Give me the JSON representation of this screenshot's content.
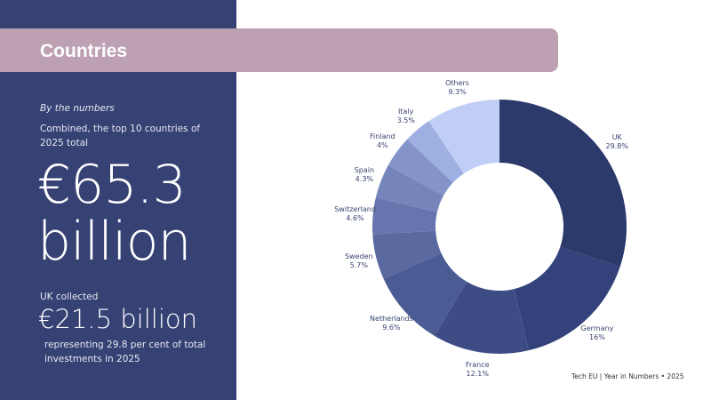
{
  "header": {
    "title": "Countries"
  },
  "summary": {
    "kicker": "By the numbers",
    "intro": "Combined, the top 10 countries of 2025 total",
    "total_line1": "€65.3",
    "total_line2": "billion",
    "uk_label": "UK collected",
    "uk_value": "€21.5 billion",
    "uk_note": "representing 29.8 per cent of total investments in 2025"
  },
  "footer": {
    "source": "Tech EU | Year in Numbers • 2025"
  },
  "colors": {
    "panel": "#364174",
    "title_band": "#bda1b3",
    "label_text": "#3a4570"
  },
  "chart_data": {
    "type": "pie",
    "subtype": "donut",
    "title": "Countries",
    "categories": [
      "UK",
      "Germany",
      "France",
      "Netherlands",
      "Sweden",
      "Switzerland",
      "Spain",
      "Finland",
      "Italy",
      "Others"
    ],
    "values": [
      29.8,
      16,
      12.1,
      9.6,
      5.7,
      4.6,
      4.3,
      4,
      3.5,
      9.3
    ],
    "labels": [
      "29.8%",
      "16%",
      "12.1%",
      "9.6%",
      "5.7%",
      "4.6%",
      "4.3%",
      "4%",
      "3.5%",
      "9.3%"
    ],
    "colors": [
      "#2b396b",
      "#33427a",
      "#3e4c85",
      "#4b5b93",
      "#5a69a0",
      "#6675ad",
      "#7584ba",
      "#8494c8",
      "#9eafe2",
      "#c0cef5"
    ],
    "start_angle": "top, clockwise",
    "legend": "none (labels outside slices)"
  }
}
